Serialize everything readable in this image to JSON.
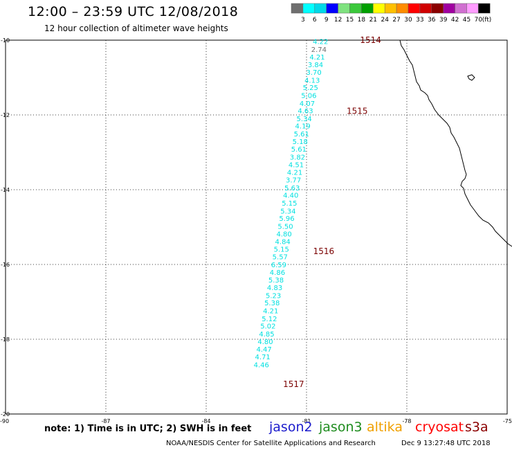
{
  "title": "12:00 – 23:59 UTC 12/08/2018",
  "subtitle": "12 hour collection of altimeter wave heights",
  "legend": {
    "labels": [
      "3",
      "6",
      "9",
      "12",
      "15",
      "18",
      "21",
      "24",
      "27",
      "30",
      "33",
      "36",
      "39",
      "42",
      "45",
      "70"
    ],
    "unit": "(ft)",
    "colors": [
      "#6f6f6f",
      "#00ffff",
      "#00d8e8",
      "#0000ff",
      "#7fe27f",
      "#3bc83b",
      "#00a000",
      "#ffff00",
      "#ffc000",
      "#ff8c00",
      "#ff0000",
      "#d00000",
      "#8b0000",
      "#a000a0",
      "#d070d0",
      "#ff9cff",
      "#000000"
    ]
  },
  "axes": {
    "lon_labels": [
      "-90",
      "-87",
      "-84",
      "-81",
      "-78",
      "-75"
    ],
    "lat_labels": [
      "-10",
      "-12",
      "-14",
      "-16",
      "-18",
      "-20"
    ]
  },
  "chart_data": {
    "type": "scatter",
    "xlim": [
      -90,
      -75
    ],
    "ylim": [
      -20,
      -10
    ],
    "grid": true,
    "points": [
      {
        "lon": -80.35,
        "lat": -10.05,
        "swh": "4.22",
        "color": "#00e0e0"
      },
      {
        "lon": -80.4,
        "lat": -10.26,
        "swh": "2.74",
        "color": "#6f6f6f"
      },
      {
        "lon": -80.45,
        "lat": -10.46,
        "swh": "4.21",
        "color": "#00e0e0"
      },
      {
        "lon": -80.5,
        "lat": -10.67,
        "swh": "3.84",
        "color": "#00e0e0"
      },
      {
        "lon": -80.55,
        "lat": -10.87,
        "swh": "3.70",
        "color": "#00e0e0"
      },
      {
        "lon": -80.6,
        "lat": -11.08,
        "swh": "4.13",
        "color": "#00e0e0"
      },
      {
        "lon": -80.65,
        "lat": -11.28,
        "swh": "5.25",
        "color": "#00e0e0"
      },
      {
        "lon": -80.7,
        "lat": -11.49,
        "swh": "5.06",
        "color": "#00e0e0"
      },
      {
        "lon": -80.75,
        "lat": -11.7,
        "swh": "4.07",
        "color": "#00e0e0"
      },
      {
        "lon": -80.8,
        "lat": -11.9,
        "swh": "4.63",
        "color": "#00e0e0"
      },
      {
        "lon": -80.84,
        "lat": -12.11,
        "swh": "5.34",
        "color": "#00e0e0"
      },
      {
        "lon": -80.88,
        "lat": -12.31,
        "swh": "4.19",
        "color": "#00e0e0"
      },
      {
        "lon": -80.92,
        "lat": -12.52,
        "swh": "5.61",
        "color": "#00e0e0"
      },
      {
        "lon": -80.96,
        "lat": -12.72,
        "swh": "5.18",
        "color": "#00e0e0"
      },
      {
        "lon": -81.0,
        "lat": -12.93,
        "swh": "5.61",
        "color": "#00e0e0"
      },
      {
        "lon": -81.04,
        "lat": -13.14,
        "swh": "3.82",
        "color": "#00e0e0"
      },
      {
        "lon": -81.08,
        "lat": -13.34,
        "swh": "4.51",
        "color": "#00e0e0"
      },
      {
        "lon": -81.12,
        "lat": -13.55,
        "swh": "4.21",
        "color": "#00e0e0"
      },
      {
        "lon": -81.16,
        "lat": -13.75,
        "swh": "3.77",
        "color": "#00e0e0"
      },
      {
        "lon": -81.2,
        "lat": -13.96,
        "swh": "5.63",
        "color": "#00e0e0"
      },
      {
        "lon": -81.24,
        "lat": -14.16,
        "swh": "4.40",
        "color": "#00e0e0"
      },
      {
        "lon": -81.28,
        "lat": -14.37,
        "swh": "5.15",
        "color": "#00e0e0"
      },
      {
        "lon": -81.32,
        "lat": -14.58,
        "swh": "5.34",
        "color": "#00e0e0"
      },
      {
        "lon": -81.36,
        "lat": -14.78,
        "swh": "5.96",
        "color": "#00e0e0"
      },
      {
        "lon": -81.4,
        "lat": -14.99,
        "swh": "5.50",
        "color": "#00e0e0"
      },
      {
        "lon": -81.44,
        "lat": -15.19,
        "swh": "4.80",
        "color": "#00e0e0"
      },
      {
        "lon": -81.48,
        "lat": -15.4,
        "swh": "4.84",
        "color": "#00e0e0"
      },
      {
        "lon": -81.52,
        "lat": -15.6,
        "swh": "5.15",
        "color": "#00e0e0"
      },
      {
        "lon": -81.56,
        "lat": -15.81,
        "swh": "5.57",
        "color": "#00e0e0"
      },
      {
        "lon": -81.6,
        "lat": -16.02,
        "swh": "6.59",
        "color": "#00e0e0"
      },
      {
        "lon": -81.64,
        "lat": -16.22,
        "swh": "4.86",
        "color": "#00e0e0"
      },
      {
        "lon": -81.68,
        "lat": -16.43,
        "swh": "5.38",
        "color": "#00e0e0"
      },
      {
        "lon": -81.72,
        "lat": -16.63,
        "swh": "4.83",
        "color": "#00e0e0"
      },
      {
        "lon": -81.76,
        "lat": -16.84,
        "swh": "5.23",
        "color": "#00e0e0"
      },
      {
        "lon": -81.8,
        "lat": -17.04,
        "swh": "5.38",
        "color": "#00e0e0"
      },
      {
        "lon": -81.84,
        "lat": -17.25,
        "swh": "4.21",
        "color": "#00e0e0"
      },
      {
        "lon": -81.88,
        "lat": -17.46,
        "swh": "5.12",
        "color": "#00e0e0"
      },
      {
        "lon": -81.92,
        "lat": -17.66,
        "swh": "5.02",
        "color": "#00e0e0"
      },
      {
        "lon": -81.96,
        "lat": -17.87,
        "swh": "4.85",
        "color": "#00e0e0"
      },
      {
        "lon": -82.0,
        "lat": -18.07,
        "swh": "4.80",
        "color": "#00e0e0"
      },
      {
        "lon": -82.04,
        "lat": -18.28,
        "swh": "4.47",
        "color": "#00e0e0"
      },
      {
        "lon": -82.08,
        "lat": -18.48,
        "swh": "4.71",
        "color": "#00e0e0"
      },
      {
        "lon": -82.12,
        "lat": -18.69,
        "swh": "4.46",
        "color": "#00e0e0"
      }
    ],
    "time_labels": [
      {
        "lon": -79.4,
        "lat": -10.0,
        "text": "1514"
      },
      {
        "lon": -79.8,
        "lat": -11.9,
        "text": "1515"
      },
      {
        "lon": -80.8,
        "lat": -15.65,
        "text": "1516"
      },
      {
        "lon": -81.7,
        "lat": -19.2,
        "text": "1517"
      }
    ]
  },
  "note": "note: 1) Time is in UTC; 2) SWH is in feet",
  "satellites": [
    {
      "name": "jason2",
      "color": "#1c1ccc"
    },
    {
      "name": "jason3",
      "color": "#1e8c1e"
    },
    {
      "name": "altika",
      "color": "#f0a000"
    },
    {
      "name": "cryosat",
      "color": "#ff0000"
    },
    {
      "name": "s3a",
      "color": "#8b0000"
    }
  ],
  "credit": "NOAA/NESDIS Center for Satellite Applications and Research",
  "timestamp": "Dec  9 13:27:48 UTC 2018"
}
